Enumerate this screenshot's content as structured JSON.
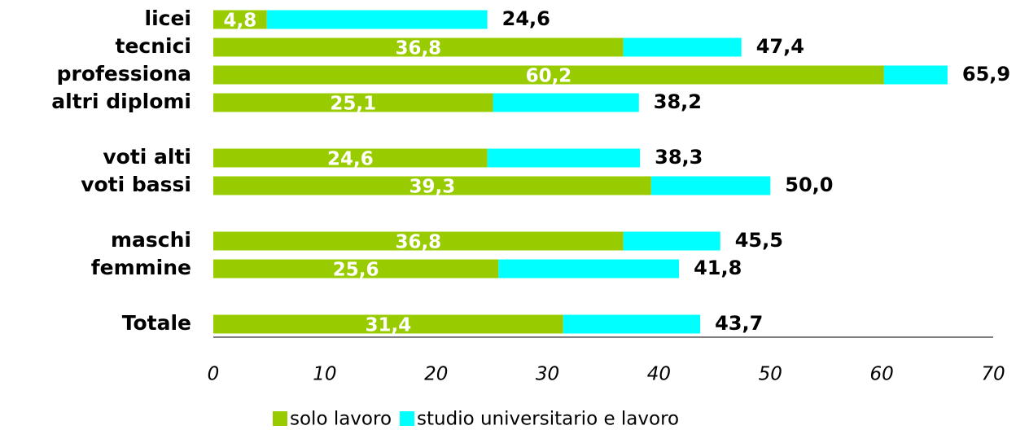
{
  "chart_data": {
    "type": "stacked-hbar",
    "categories": [
      "licei",
      "tecnici",
      "professiona",
      "altri diplomi",
      null,
      "voti alti",
      "voti bassi",
      null,
      "maschi",
      "femmine",
      null,
      "Totale"
    ],
    "series": [
      {
        "name": "solo lavoro",
        "color": "#99cc00",
        "values": [
          4.8,
          36.8,
          60.2,
          25.1,
          null,
          24.6,
          39.3,
          null,
          36.8,
          25.6,
          null,
          31.4
        ],
        "value_labels": [
          "4,8",
          "36,8",
          "60,2",
          "25,1",
          null,
          "24,6",
          "39,3",
          null,
          "36,8",
          "25,6",
          null,
          "31,4"
        ]
      },
      {
        "name": "studio universitario e lavoro",
        "color": "#00ffff",
        "values": [
          19.8,
          10.6,
          5.7,
          13.1,
          null,
          13.7,
          10.7,
          null,
          8.7,
          16.2,
          null,
          12.3
        ]
      }
    ],
    "totals": [
      24.6,
      47.4,
      65.9,
      38.2,
      null,
      38.3,
      50.0,
      null,
      45.5,
      41.8,
      null,
      43.7
    ],
    "total_labels": [
      "24,6",
      "47,4",
      "65,9",
      "38,2",
      null,
      "38,3",
      "50,0",
      null,
      "45,5",
      "41,8",
      null,
      "43,7"
    ],
    "xlim": [
      0,
      70
    ],
    "xticks": [
      0,
      10,
      20,
      30,
      40,
      50,
      60,
      70
    ]
  }
}
